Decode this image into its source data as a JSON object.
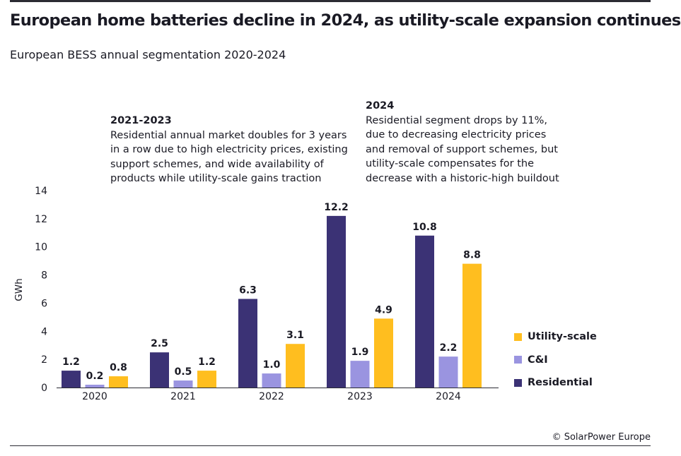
{
  "title": "European home batteries decline in 2024, as utility-scale expansion continues",
  "subtitle": "European BESS annual segmentation 2020-2024",
  "annotations": [
    {
      "heading": "2021-2023",
      "text": "Residential annual market doubles for 3 years\nin a row due to high electricity prices, existing\nsupport schemes, and wide availability of\nproducts while utility-scale gains traction"
    },
    {
      "heading": "2024",
      "text": "Residential segment drops by 11%,\ndue to decreasing electricity prices\nand removal of support schemes, but\nutility-scale compensates for the\ndecrease with a historic-high buildout"
    }
  ],
  "credit": "© SolarPower Europe",
  "chart_data": {
    "type": "bar",
    "categories": [
      "2020",
      "2021",
      "2022",
      "2023",
      "2024"
    ],
    "series": [
      {
        "name": "Residential",
        "values": [
          1.2,
          2.5,
          6.3,
          12.2,
          10.8
        ],
        "color": "#3b3275"
      },
      {
        "name": "C&I",
        "values": [
          0.2,
          0.5,
          1.0,
          1.9,
          2.2
        ],
        "color": "#9a94e0"
      },
      {
        "name": "Utility-scale",
        "values": [
          0.8,
          1.2,
          3.1,
          4.9,
          8.8
        ],
        "color": "#ffbe1f"
      }
    ],
    "data_labels": [
      [
        "1.2",
        "2.5",
        "6.3",
        "12.2",
        "10.8"
      ],
      [
        "0.2",
        "0.5",
        "1.0",
        "1.9",
        "2.2"
      ],
      [
        "0.8",
        "1.2",
        "3.1",
        "4.9",
        "8.8"
      ]
    ],
    "ylabel": "GWh",
    "xlabel": "",
    "ylim": [
      0,
      14
    ],
    "yticks": [
      "0",
      "2",
      "4",
      "6",
      "8",
      "10",
      "12",
      "14"
    ],
    "grid": false,
    "legend": {
      "placement": "right",
      "order": [
        "Utility-scale",
        "C&I",
        "Residential"
      ]
    }
  }
}
